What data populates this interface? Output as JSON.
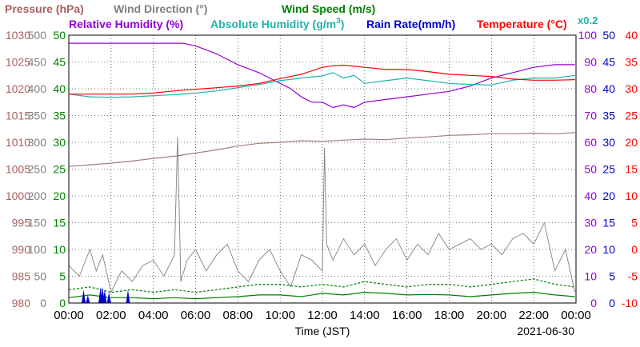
{
  "chart_data": {
    "type": "line",
    "date": "2021-06-30",
    "xlabel": "Time (JST)",
    "multiplier_label": "x0.2",
    "x_ticks": [
      "00:00",
      "02:00",
      "04:00",
      "06:00",
      "08:00",
      "10:00",
      "12:00",
      "14:00",
      "16:00",
      "18:00",
      "20:00",
      "22:00",
      "00:00"
    ],
    "grid": true,
    "axes": {
      "pressure": {
        "label": "Pressure (hPa)",
        "min": 980,
        "max": 1030,
        "ticks": [
          1030,
          1025,
          1020,
          1015,
          1010,
          1005,
          1000,
          995,
          990,
          985,
          980
        ],
        "color": "#a86060"
      },
      "wind_dir": {
        "label": "Wind Direction (°)",
        "min": 0,
        "max": 500,
        "ticks": [
          500,
          450,
          400,
          350,
          300,
          250,
          200,
          150,
          100,
          50,
          0
        ],
        "color": "#808080"
      },
      "wind_speed": {
        "label": "Wind Speed (m/s)",
        "min": 0,
        "max": 50,
        "ticks": [
          50,
          45,
          40,
          35,
          30,
          25,
          20,
          15,
          10,
          5,
          0
        ],
        "color": "#008000"
      },
      "rel_humidity": {
        "label": "Relative Humidity (%)",
        "min": 0,
        "max": 100,
        "ticks": [
          100,
          90,
          80,
          70,
          60,
          50,
          40,
          30,
          20,
          10,
          0
        ],
        "color": "#9400d3"
      },
      "abs_humidity": {
        "label": "Absolute Humidity (g/m",
        "label_sup": "3",
        "label_end": ")",
        "color": "#20b2aa"
      },
      "rain_rate": {
        "label": "Rain Rate(mm/h)",
        "min": 0,
        "max": 50,
        "ticks": [
          50,
          45,
          40,
          35,
          30,
          25,
          20,
          15,
          10,
          5,
          0
        ],
        "color": "#0000cc"
      },
      "temperature": {
        "label": "Temperature (°C)",
        "min": -10,
        "max": 40,
        "ticks": [
          40,
          35,
          30,
          25,
          20,
          15,
          10,
          5,
          0,
          -5,
          -10
        ],
        "color": "#ff0000"
      }
    },
    "series": [
      {
        "name": "Relative Humidity",
        "axis": "rel_humidity",
        "color": "#9400d3",
        "x": [
          0,
          2,
          4,
          5.4,
          6,
          7,
          7.5,
          8,
          9,
          9.5,
          10,
          10.5,
          11,
          11.5,
          12,
          12.5,
          13,
          13.5,
          14,
          15,
          16,
          17,
          18,
          19,
          20,
          21,
          22,
          23,
          23.95
        ],
        "y": [
          97,
          97,
          97,
          97,
          96,
          93,
          91,
          89,
          86,
          84,
          82,
          80,
          77,
          75,
          75,
          73,
          74,
          73,
          75,
          76,
          77,
          78,
          79,
          81,
          84,
          86,
          88,
          89,
          89
        ]
      },
      {
        "name": "Absolute Humidity",
        "axis": "wind_speed",
        "color": "#20b2aa",
        "x": [
          0,
          1,
          2,
          3,
          4,
          5,
          6,
          7,
          8,
          9,
          10,
          11,
          12,
          12.5,
          13,
          13.5,
          14,
          15,
          16,
          17,
          18,
          19,
          20,
          21,
          22,
          23,
          23.95
        ],
        "y": [
          39,
          38.5,
          38.4,
          38.5,
          38.7,
          38.9,
          39.2,
          39.6,
          40.2,
          40.8,
          41.5,
          42,
          42.4,
          43,
          42,
          42.5,
          41,
          41.5,
          42,
          41.5,
          41,
          40.8,
          40.7,
          41.6,
          42,
          42,
          42.5
        ]
      },
      {
        "name": "Temperature",
        "axis": "temperature",
        "color": "#ff0000",
        "x": [
          0,
          1,
          2,
          3,
          4,
          5,
          6,
          7,
          8,
          9,
          10,
          11,
          12,
          12.5,
          13,
          14,
          15,
          16,
          17,
          18,
          19,
          20,
          21,
          22,
          23,
          23.95
        ],
        "y": [
          29,
          29,
          29,
          29,
          29.2,
          29.6,
          29.9,
          30.2,
          30.5,
          31,
          31.9,
          32.7,
          34,
          34.3,
          34.4,
          34,
          33.6,
          33.6,
          33.2,
          32.7,
          32.5,
          32.3,
          31.8,
          31.6,
          31.6,
          31.7
        ]
      },
      {
        "name": "Pressure",
        "axis": "pressure",
        "color": "#a0807a",
        "x": [
          0,
          1,
          2,
          3,
          4,
          5,
          6,
          7,
          8,
          9,
          10,
          11,
          12,
          13,
          14,
          15,
          16,
          17,
          18,
          19,
          20,
          21,
          22,
          23,
          23.95
        ],
        "y": [
          1005.5,
          1005.8,
          1006.1,
          1006.5,
          1007,
          1007.4,
          1008,
          1008.6,
          1009.3,
          1009.8,
          1010,
          1010.3,
          1010.2,
          1010.4,
          1010.6,
          1010.5,
          1010.8,
          1011,
          1011.3,
          1011.4,
          1011.6,
          1011.6,
          1011.7,
          1011.6,
          1011.8
        ]
      },
      {
        "name": "Wind Direction",
        "axis": "wind_dir",
        "color": "#808080",
        "style": "noisy",
        "x": [
          0,
          0.5,
          1,
          1.3,
          1.6,
          2,
          2.5,
          3,
          3.5,
          4,
          4.5,
          5,
          5.15,
          5.3,
          5.6,
          6,
          6.5,
          7,
          7.5,
          8,
          8.5,
          9,
          9.5,
          10,
          10.5,
          11,
          11.5,
          12,
          12.1,
          12.2,
          12.5,
          13,
          13.5,
          14,
          14.5,
          15,
          15.5,
          16,
          16.5,
          17,
          17.5,
          18,
          18.5,
          19,
          19.5,
          20,
          20.5,
          21,
          21.5,
          22,
          22.5,
          23,
          23.5,
          23.95
        ],
        "y": [
          70,
          50,
          100,
          60,
          90,
          20,
          60,
          40,
          70,
          80,
          50,
          90,
          310,
          40,
          80,
          100,
          60,
          90,
          110,
          60,
          40,
          80,
          100,
          60,
          30,
          90,
          80,
          60,
          290,
          110,
          80,
          120,
          90,
          110,
          70,
          100,
          120,
          80,
          110,
          90,
          130,
          100,
          110,
          120,
          100,
          110,
          90,
          120,
          130,
          110,
          150,
          60,
          100,
          20
        ]
      },
      {
        "name": "Wind Speed",
        "axis": "wind_speed",
        "color": "#008000",
        "style": "dashed",
        "x": [
          0,
          1,
          2,
          3,
          4,
          5,
          6,
          7,
          8,
          9,
          10,
          11,
          12,
          13,
          14,
          15,
          16,
          17,
          18,
          19,
          20,
          21,
          22,
          23,
          23.95
        ],
        "y": [
          2.5,
          3,
          2,
          2.5,
          2,
          2.5,
          2,
          2.5,
          3,
          3.5,
          3.5,
          3,
          3.5,
          3,
          4,
          3.5,
          3,
          3.5,
          3.5,
          3,
          3.5,
          4,
          4.5,
          3.5,
          3
        ]
      },
      {
        "name": "Wind Speed Min",
        "axis": "wind_speed",
        "color": "#008000",
        "x": [
          0,
          1,
          2,
          3,
          4,
          5,
          6,
          7,
          8,
          9,
          10,
          11,
          12,
          13,
          14,
          15,
          16,
          17,
          18,
          19,
          20,
          21,
          22,
          23,
          23.95
        ],
        "y": [
          1,
          1.5,
          1,
          1,
          0.8,
          1,
          0.8,
          1,
          1.2,
          1.5,
          1.5,
          1.2,
          1.8,
          1.5,
          2,
          1.8,
          1.5,
          1.6,
          1.5,
          1.2,
          1.5,
          1.8,
          2,
          1.5,
          1.2
        ]
      },
      {
        "name": "Rain Rate",
        "axis": "rain_rate",
        "color": "#0000cc",
        "style": "spikes",
        "x": [
          0.7,
          0.9,
          1.5,
          1.6,
          1.7,
          1.9,
          2.8
        ],
        "y": [
          2.5,
          1.5,
          3,
          3,
          2.5,
          2,
          2.5
        ]
      }
    ]
  }
}
